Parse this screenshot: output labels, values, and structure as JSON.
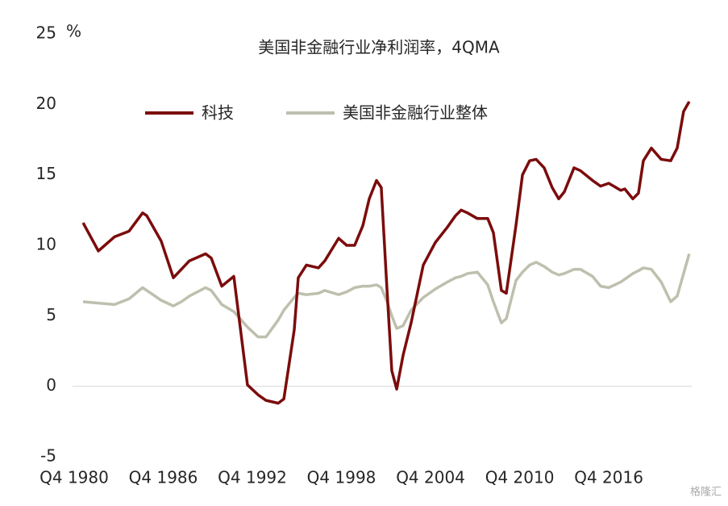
{
  "chart_data": {
    "type": "line",
    "title": "美国非金融行业净利润率，4QMA",
    "y_label": "%",
    "watermark": "格隆汇",
    "x": [
      1981.35,
      1982.38,
      1983.46,
      1984.44,
      1985.36,
      1985.64,
      1986.61,
      1987.43,
      1987.97,
      1988.51,
      1989.6,
      1989.98,
      1990.69,
      1991.5,
      1992.42,
      1993.13,
      1993.67,
      1994.49,
      1994.87,
      1995.57,
      1995.84,
      1996.39,
      1997.2,
      1997.63,
      1998.56,
      1999.1,
      1999.64,
      2000.19,
      2000.62,
      2001.11,
      2001.43,
      2001.82,
      2002.14,
      2002.47,
      2002.9,
      2003.44,
      2004.26,
      2005.07,
      2005.89,
      2006.43,
      2006.81,
      2007.24,
      2007.9,
      2008.6,
      2008.98,
      2009.52,
      2009.85,
      2010.5,
      2010.94,
      2011.42,
      2011.86,
      2012.4,
      2012.94,
      2013.38,
      2013.76,
      2014.41,
      2014.84,
      2015.66,
      2016.2,
      2016.75,
      2017.56,
      2017.83,
      2018.37,
      2018.75,
      2019.08,
      2019.62,
      2020.28,
      2020.92,
      2021.36,
      2021.79,
      2022.17
    ],
    "series": [
      {
        "name": "科技",
        "color": "#7b0c0c",
        "values": [
          11.6,
          9.6,
          10.6,
          11.0,
          12.3,
          12.1,
          10.3,
          7.7,
          8.3,
          8.9,
          9.4,
          9.1,
          7.1,
          7.8,
          0.1,
          -0.6,
          -1.0,
          -1.2,
          -0.9,
          4.0,
          7.7,
          8.6,
          8.4,
          8.9,
          10.5,
          10.0,
          10.0,
          11.4,
          13.3,
          14.6,
          14.1,
          6.8,
          1.1,
          -0.2,
          2.2,
          4.5,
          8.6,
          10.2,
          11.3,
          12.1,
          12.5,
          12.3,
          11.9,
          11.9,
          10.9,
          6.8,
          6.6,
          11.4,
          15.0,
          16.0,
          16.1,
          15.5,
          14.1,
          13.3,
          13.8,
          15.5,
          15.3,
          14.6,
          14.2,
          14.4,
          13.9,
          14.0,
          13.3,
          13.7,
          16.0,
          16.9,
          16.1,
          16.0,
          16.9,
          19.5,
          20.2
        ]
      },
      {
        "name": "美国非金融行业整体",
        "color": "#bfbfae",
        "values": [
          6.0,
          5.9,
          5.8,
          6.2,
          7.0,
          6.8,
          6.1,
          5.7,
          6.0,
          6.4,
          7.0,
          6.8,
          5.8,
          5.3,
          4.2,
          3.5,
          3.5,
          4.7,
          5.4,
          6.3,
          6.6,
          6.5,
          6.6,
          6.8,
          6.5,
          6.7,
          7.0,
          7.1,
          7.1,
          7.2,
          7.0,
          6.0,
          5.0,
          4.1,
          4.3,
          5.4,
          6.3,
          6.9,
          7.4,
          7.7,
          7.8,
          8.0,
          8.1,
          7.2,
          6.0,
          4.5,
          4.8,
          7.5,
          8.1,
          8.6,
          8.8,
          8.5,
          8.1,
          7.9,
          8.0,
          8.3,
          8.3,
          7.8,
          7.1,
          7.0,
          7.4,
          7.6,
          8.0,
          8.2,
          8.4,
          8.3,
          7.4,
          6.0,
          6.4,
          8.0,
          9.4
        ]
      }
    ],
    "xlim": [
      1980.75,
      2022.5
    ],
    "xticks": [
      {
        "value": 1980.75,
        "label": "Q4 1980"
      },
      {
        "value": 1986.75,
        "label": "Q4 1986"
      },
      {
        "value": 1992.75,
        "label": "Q4 1992"
      },
      {
        "value": 1998.75,
        "label": "Q4 1998"
      },
      {
        "value": 2004.75,
        "label": "Q4 2004"
      },
      {
        "value": 2010.75,
        "label": "Q4 2010"
      },
      {
        "value": 2016.75,
        "label": "Q4 2016"
      }
    ],
    "ylim": [
      -5,
      25
    ],
    "yticks": [
      -5,
      0,
      5,
      10,
      15,
      20,
      25
    ],
    "grid": false
  }
}
